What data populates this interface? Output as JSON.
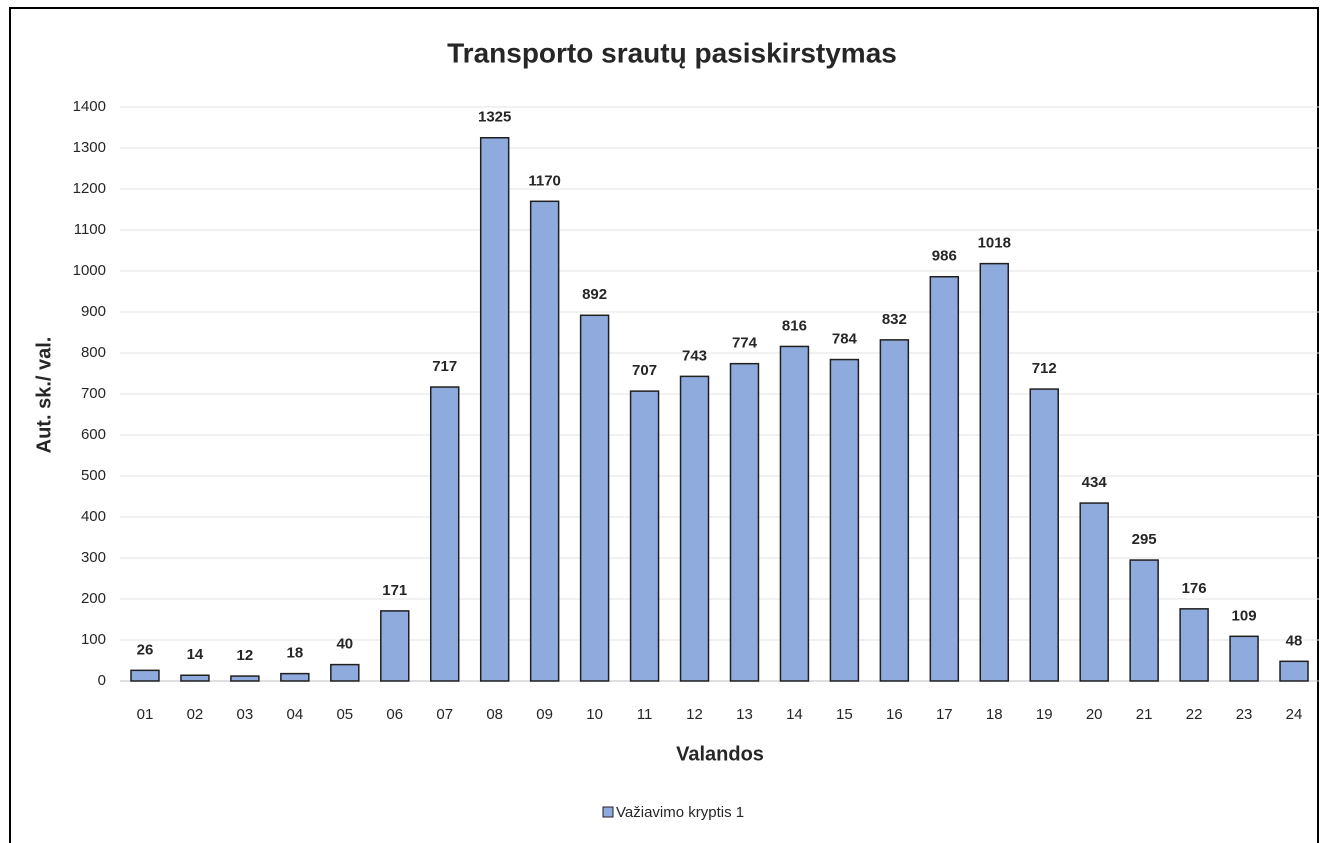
{
  "chart_data": {
    "type": "bar",
    "title": "Transporto srautų pasiskirstymas",
    "x_label": "Valandos",
    "y_label": "Aut. sk./ val.",
    "categories": [
      "01",
      "02",
      "03",
      "04",
      "05",
      "06",
      "07",
      "08",
      "09",
      "10",
      "11",
      "12",
      "13",
      "14",
      "15",
      "16",
      "17",
      "18",
      "19",
      "20",
      "21",
      "22",
      "23",
      "24"
    ],
    "series": [
      {
        "name": "Važiavimo kryptis 1",
        "color": "#8faadc",
        "values": [
          26,
          14,
          12,
          18,
          40,
          171,
          717,
          1325,
          1170,
          892,
          707,
          743,
          774,
          816,
          784,
          832,
          986,
          1018,
          712,
          434,
          295,
          176,
          109,
          48
        ]
      }
    ],
    "ylim": [
      0,
      1400
    ],
    "yticks": [
      0,
      100,
      200,
      300,
      400,
      500,
      600,
      700,
      800,
      900,
      1000,
      1100,
      1200,
      1300,
      1400
    ],
    "grid": true
  }
}
